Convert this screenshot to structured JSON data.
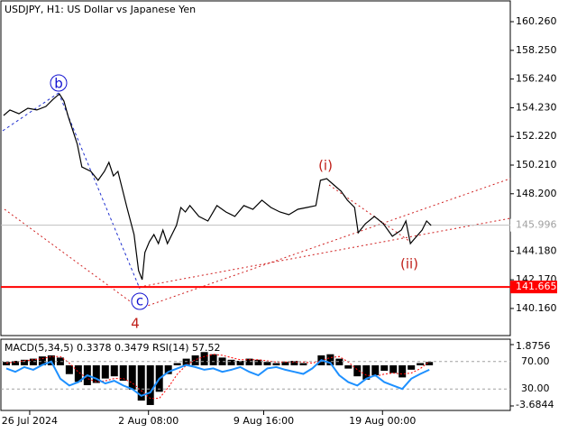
{
  "chart_data": [
    {
      "type": "line",
      "title": "USDJPY, H1:  US Dollar vs Japanese Yen",
      "x": [
        1.5,
        5,
        10,
        15,
        20,
        25,
        29,
        32.5,
        35,
        37.5,
        40,
        42.5,
        45,
        50,
        54,
        57.5,
        60,
        62.5,
        65,
        70,
        74,
        76.5,
        78.5,
        80,
        82.5,
        85,
        87.5,
        90,
        92.5,
        95,
        97.5,
        100,
        102.5,
        105,
        110,
        115,
        120,
        125,
        130,
        135,
        140,
        145,
        150,
        155,
        160,
        165,
        170,
        175,
        177.5,
        181,
        185,
        189,
        192.5,
        196.5,
        198.5,
        202.5,
        207.5,
        212.5,
        217.5,
        222.5,
        225,
        227.5,
        231,
        234,
        236.5,
        239
      ],
      "values": [
        153.69,
        154.07,
        153.81,
        154.19,
        154.07,
        154.32,
        154.82,
        155.2,
        154.7,
        153.56,
        152.61,
        151.66,
        150.08,
        149.77,
        149.14,
        149.77,
        150.4,
        149.45,
        149.77,
        147.24,
        145.34,
        142.81,
        142.18,
        144.08,
        144.84,
        145.34,
        144.71,
        145.66,
        144.71,
        145.34,
        145.98,
        147.24,
        146.92,
        147.37,
        146.61,
        146.29,
        147.37,
        146.92,
        146.61,
        147.37,
        147.11,
        147.75,
        147.24,
        146.92,
        146.73,
        147.11,
        147.24,
        147.37,
        149.14,
        149.26,
        148.82,
        148.38,
        147.75,
        147.24,
        145.47,
        146.1,
        146.61,
        146.1,
        145.22,
        145.66,
        146.29,
        144.71,
        145.22,
        145.66,
        146.29,
        145.98
      ],
      "color": "#000000",
      "xlim": [
        0,
        283
      ],
      "xticks": [
        {
          "value": 16,
          "label": "26 Jul 2024"
        },
        {
          "value": 82,
          "label": "2 Aug 08:00"
        },
        {
          "value": 146,
          "label": "9 Aug 16:00"
        },
        {
          "value": 212,
          "label": "19 Aug 00:00"
        }
      ],
      "ylim": [
        138.26,
        161.78
      ],
      "yticks": [
        {
          "value": 160.26,
          "label": "160.260"
        },
        {
          "value": 158.25,
          "label": "158.250"
        },
        {
          "value": 156.24,
          "label": "156.240"
        },
        {
          "value": 154.23,
          "label": "154.230"
        },
        {
          "value": 152.22,
          "label": "152.220"
        },
        {
          "value": 150.21,
          "label": "150.210"
        },
        {
          "value": 148.2,
          "label": "148.200"
        },
        {
          "value": 144.18,
          "label": "144.180"
        },
        {
          "value": 142.17,
          "label": "142.170"
        },
        {
          "value": 140.16,
          "label": "140.160"
        }
      ],
      "current_price": 145.996,
      "level": 141.665,
      "level_color": "#ff0000",
      "annotations": [
        "b",
        "c",
        "4",
        "(i)",
        "(ii)"
      ]
    },
    {
      "type": "indicator",
      "macd_title": "MACD(5,34,5)",
      "macd": 0.3378,
      "signal": 0.3479,
      "rsi_title": "RSI(14)",
      "rsi": 57.52,
      "x": [
        3,
        8,
        13,
        18,
        23,
        28,
        33,
        38,
        43,
        48,
        53,
        58,
        63,
        68,
        73,
        78,
        83,
        88,
        93,
        98,
        103,
        108,
        113,
        118,
        123,
        128,
        133,
        138,
        143,
        148,
        153,
        158,
        163,
        168,
        173,
        178,
        183,
        188,
        193,
        198,
        203,
        208,
        213,
        218,
        223,
        228,
        233,
        238
      ],
      "xlim": [
        0,
        283
      ],
      "histogram": {
        "color": "#000000",
        "values": [
          0.3,
          0.4,
          0.5,
          0.6,
          0.8,
          0.9,
          0.7,
          -0.8,
          -1.5,
          -1.8,
          -1.6,
          -1.2,
          -1.0,
          -1.4,
          -2.2,
          -3.2,
          -3.6,
          -2.4,
          -0.8,
          0.2,
          0.6,
          0.9,
          1.2,
          1.0,
          0.7,
          0.5,
          0.4,
          0.6,
          0.5,
          0.3,
          0.2,
          0.3,
          0.4,
          0.2,
          0.0,
          0.9,
          1.0,
          0.6,
          -0.3,
          -1.0,
          -1.3,
          -0.9,
          -0.5,
          -0.7,
          -1.1,
          -0.4,
          0.2,
          0.3
        ]
      },
      "signal_line": {
        "color": "#ff0000",
        "values": [
          0.2,
          0.3,
          0.4,
          0.5,
          0.6,
          0.8,
          0.8,
          0.2,
          -0.6,
          -1.2,
          -1.5,
          -1.4,
          -1.2,
          -1.2,
          -1.6,
          -2.3,
          -3.0,
          -3.0,
          -2.0,
          -0.8,
          0.0,
          0.5,
          0.8,
          1.0,
          0.9,
          0.7,
          0.5,
          0.5,
          0.5,
          0.4,
          0.3,
          0.3,
          0.3,
          0.3,
          0.2,
          0.4,
          0.7,
          0.8,
          0.3,
          -0.4,
          -0.9,
          -1.0,
          -0.8,
          -0.7,
          -0.8,
          -0.7,
          -0.3,
          0.35
        ]
      },
      "y2lim": [
        -3.6844,
        1.8756
      ],
      "y2ticks": [
        1.8756,
        -3.6844
      ],
      "rsi_line": {
        "color": "#1e90ff",
        "values": [
          60,
          55,
          62,
          58,
          65,
          70,
          45,
          35,
          40,
          50,
          45,
          38,
          42,
          35,
          30,
          20,
          25,
          45,
          55,
          60,
          65,
          62,
          58,
          60,
          55,
          58,
          62,
          55,
          50,
          60,
          62,
          58,
          55,
          52,
          60,
          72,
          68,
          50,
          40,
          35,
          45,
          50,
          40,
          35,
          30,
          45,
          52,
          58
        ],
        "ylim": [
          0,
          100
        ],
        "yticks": [
          {
            "value": 70,
            "label": "70.00"
          },
          {
            "value": 30,
            "label": "30.00"
          }
        ]
      }
    }
  ]
}
